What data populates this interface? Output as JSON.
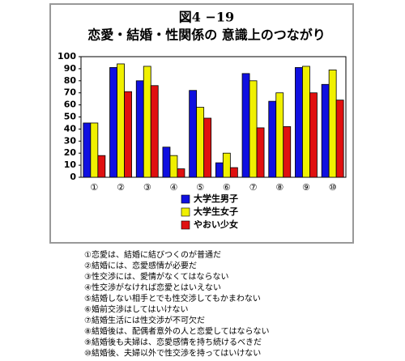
{
  "chart_data": {
    "type": "bar",
    "title": "図4 −19",
    "subtitle": "恋愛・結婚・性関係の 意識上のつながり",
    "categories": [
      "①",
      "②",
      "③",
      "④",
      "⑤",
      "⑥",
      "⑦",
      "⑧",
      "⑨",
      "⑩"
    ],
    "series": [
      {
        "name": "大学生男子",
        "color": "#1010e0",
        "values": [
          45,
          91,
          80,
          25,
          72,
          12,
          86,
          63,
          91,
          77
        ]
      },
      {
        "name": "大学生女子",
        "color": "#f0f000",
        "values": [
          45,
          94,
          92,
          18,
          58,
          20,
          80,
          70,
          92,
          89
        ]
      },
      {
        "name": "やおい少女",
        "color": "#e01010",
        "values": [
          18,
          71,
          76,
          7,
          49,
          8,
          41,
          42,
          70,
          64
        ]
      }
    ],
    "ylim": [
      0,
      100
    ],
    "yticks": [
      0,
      10,
      20,
      30,
      40,
      50,
      60,
      70,
      80,
      90,
      100
    ],
    "grid": false
  },
  "notes": [
    "①恋愛は、結婚に結びつくのが普通だ",
    "②結婚には、恋愛感情が必要だ",
    "③性交渉には、愛情がなくてはならない",
    "④性交渉がなければ恋愛とはいえない",
    "⑤結婚しない相手とでも性交渉してもかまわない",
    "⑥婚前交渉はしてはいけない",
    "⑦結婚生活には性交渉が不可欠だ",
    "⑧結婚後は、配偶者意外の人と恋愛してはならない",
    "⑨結婚後も夫婦は、恋愛感情を持ち続けるべきだ",
    "⑩結婚後、夫婦以外で性交渉を持ってはいけない"
  ]
}
